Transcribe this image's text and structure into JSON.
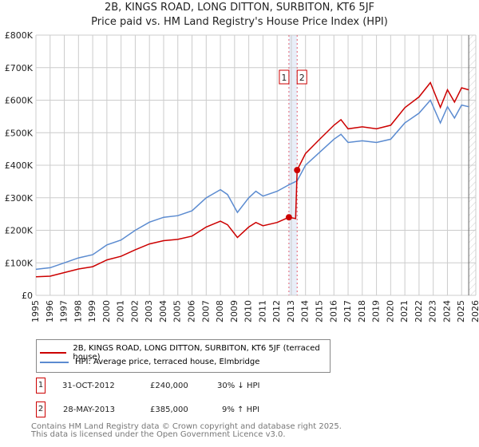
{
  "chart_data": {
    "type": "line",
    "title": "2B, KINGS ROAD, LONG DITTON, SURBITON, KT6 5JF",
    "subtitle": "Price paid vs. HM Land Registry's House Price Index (HPI)",
    "xlim": [
      1995,
      2026
    ],
    "ylim": [
      0,
      800000
    ],
    "x_ticks": [
      "1995",
      "1996",
      "1997",
      "1998",
      "1999",
      "2000",
      "2001",
      "2002",
      "2003",
      "2004",
      "2005",
      "2006",
      "2007",
      "2008",
      "2009",
      "2010",
      "2011",
      "2012",
      "2013",
      "2014",
      "2015",
      "2016",
      "2017",
      "2018",
      "2019",
      "2020",
      "2021",
      "2022",
      "2023",
      "2024",
      "2025",
      "2026"
    ],
    "y_ticks": [
      "£0",
      "£100K",
      "£200K",
      "£300K",
      "£400K",
      "£500K",
      "£600K",
      "£700K",
      "£800K"
    ],
    "grid": true,
    "series": [
      {
        "name": "2B, KINGS ROAD, LONG DITTON, SURBITON, KT6 5JF (terraced house)",
        "color": "#cc0000",
        "x": [
          1995,
          1996,
          1997,
          1998,
          1999,
          2000,
          2001,
          2002,
          2003,
          2004,
          2005,
          2006,
          2007,
          2008,
          2008.5,
          2009.2,
          2010,
          2010.5,
          2011,
          2012,
          2012.83,
          2013.3,
          2013.41,
          2014,
          2015,
          2016,
          2016.5,
          2017,
          2018,
          2019,
          2020,
          2021,
          2022,
          2022.8,
          2023.5,
          2024,
          2024.5,
          2025,
          2025.5
        ],
        "y": [
          57000,
          59000,
          70000,
          81000,
          88000,
          109000,
          120000,
          140000,
          158000,
          168000,
          172000,
          182000,
          210000,
          228000,
          217000,
          178000,
          210000,
          224000,
          214000,
          224000,
          240000,
          236000,
          385000,
          436000,
          480000,
          523000,
          540000,
          512000,
          518000,
          512000,
          523000,
          577000,
          610000,
          654000,
          578000,
          632000,
          594000,
          638000,
          632000
        ]
      },
      {
        "name": "HPI: Average price, terraced house, Elmbridge",
        "color": "#5b8bd0",
        "x": [
          1995,
          1996,
          1997,
          1998,
          1999,
          2000,
          2001,
          2002,
          2003,
          2004,
          2005,
          2006,
          2007,
          2008,
          2008.5,
          2009.2,
          2010,
          2010.5,
          2011,
          2012,
          2012.83,
          2013.41,
          2014,
          2015,
          2016,
          2016.5,
          2017,
          2018,
          2019,
          2020,
          2021,
          2022,
          2022.8,
          2023.5,
          2024,
          2024.5,
          2025,
          2025.5
        ],
        "y": [
          80000,
          85000,
          100000,
          115000,
          125000,
          155000,
          170000,
          200000,
          225000,
          240000,
          245000,
          260000,
          300000,
          325000,
          310000,
          255000,
          300000,
          320000,
          305000,
          320000,
          340000,
          352000,
          400000,
          440000,
          480000,
          495000,
          470000,
          475000,
          470000,
          480000,
          530000,
          560000,
          600000,
          530000,
          580000,
          545000,
          585000,
          580000
        ]
      }
    ],
    "sales": [
      {
        "label": "1",
        "x": 2012.83,
        "y": 240000
      },
      {
        "label": "2",
        "x": 2013.41,
        "y": 385000
      }
    ]
  },
  "legend": {
    "property": "2B, KINGS ROAD, LONG DITTON, SURBITON, KT6 5JF (terraced house)",
    "hpi": "HPI: Average price, terraced house, Elmbridge"
  },
  "transactions": [
    {
      "num": "1",
      "date": "31-OCT-2012",
      "price": "£240,000",
      "hpi": "30% ↓ HPI"
    },
    {
      "num": "2",
      "date": "28-MAY-2013",
      "price": "£385,000",
      "hpi": "9% ↑ HPI"
    }
  ],
  "footer": {
    "line1": "Contains HM Land Registry data © Crown copyright and database right 2025.",
    "line2": "This data is licensed under the Open Government Licence v3.0."
  }
}
